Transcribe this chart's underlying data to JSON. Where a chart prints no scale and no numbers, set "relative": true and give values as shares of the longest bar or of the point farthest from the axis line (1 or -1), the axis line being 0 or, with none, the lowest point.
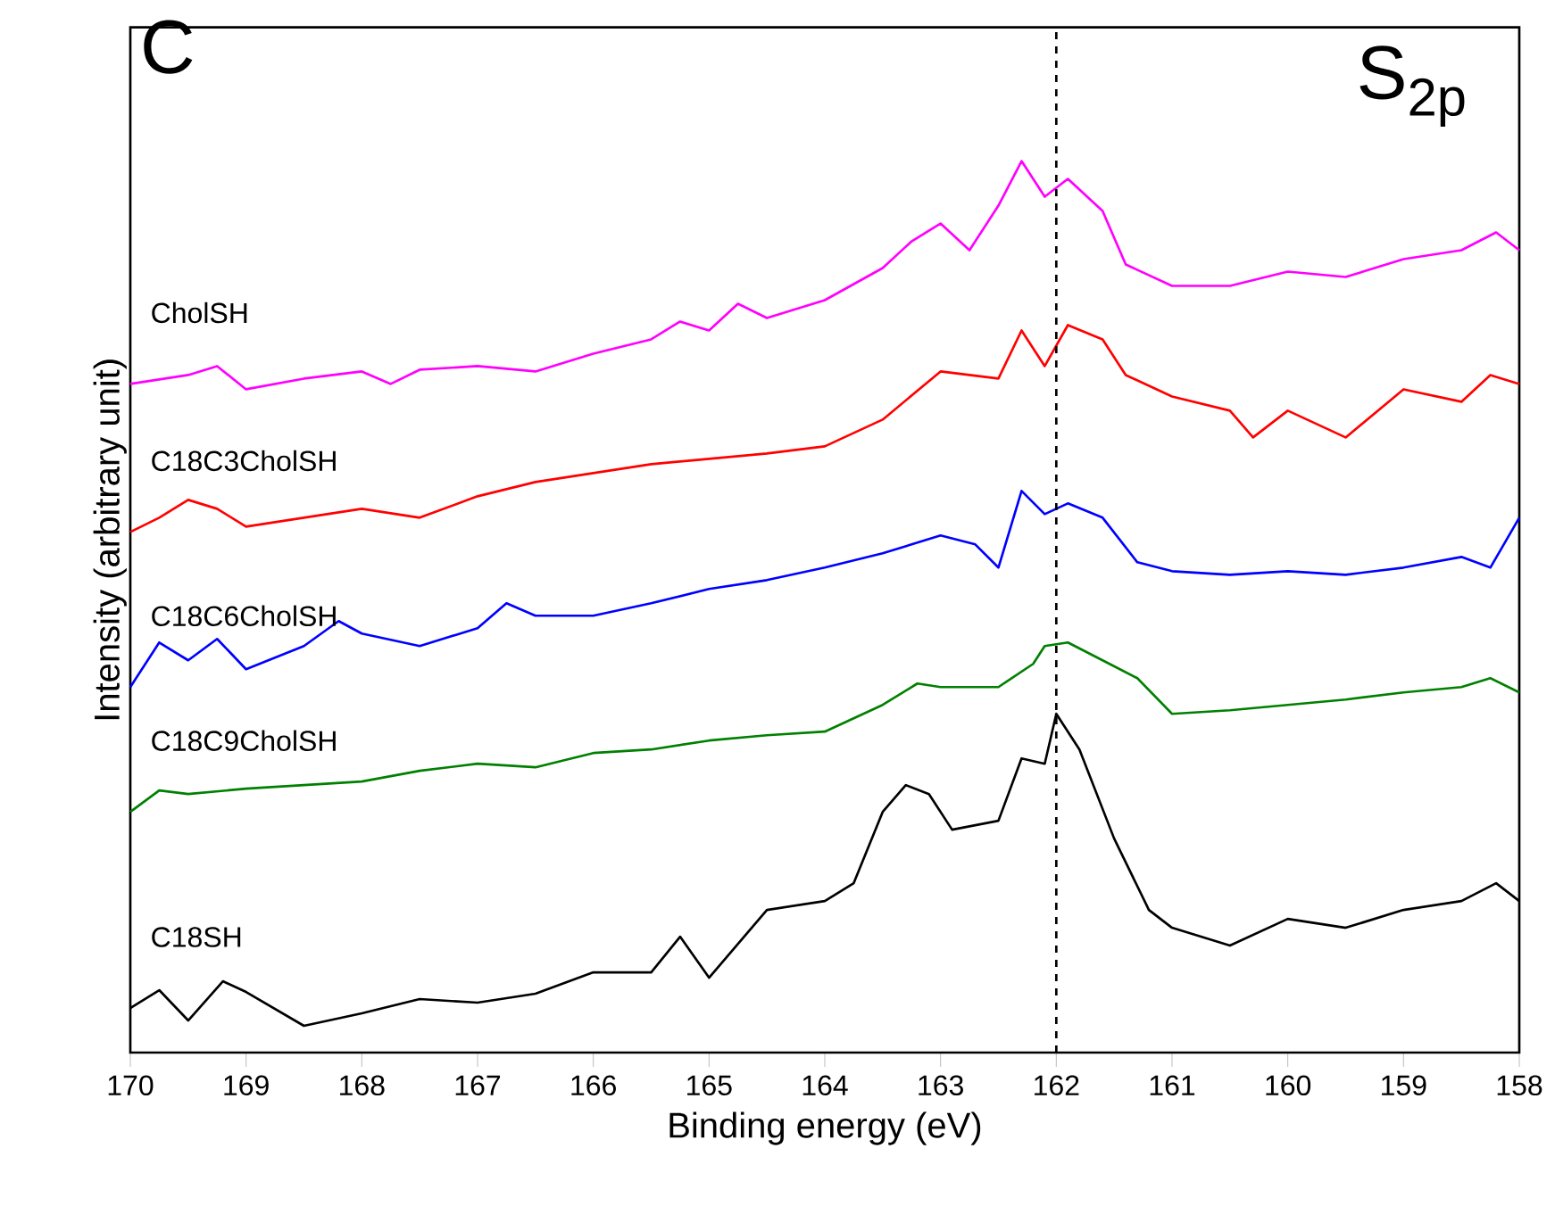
{
  "chart_data": {
    "type": "line",
    "xlabel": "Binding energy (eV)",
    "ylabel": "Intensity (arbitrary unit)",
    "annotations": [
      "C",
      "S$_{2p}$"
    ],
    "relative": true,
    "tick_labels": "x",
    "grid": false,
    "marker": "none",
    "line_style": "solid",
    "xlim": [
      170,
      158
    ],
    "xticks": [
      170,
      169,
      168,
      167,
      166,
      165,
      164,
      163,
      162,
      161,
      160,
      159,
      158
    ],
    "ref_lines": [
      {
        "axis": "x",
        "value": 162,
        "color": "#000000",
        "line_style": "dashed"
      }
    ],
    "series": [
      {
        "name": "CholSH",
        "color": "#ff00ff",
        "x": [
          170,
          169.5,
          169.25,
          169,
          168.5,
          168,
          167.75,
          167.5,
          167,
          166.5,
          166,
          165.5,
          165.25,
          165,
          164.75,
          164.5,
          164,
          163.5,
          163.25,
          163,
          162.75,
          162.5,
          162.3,
          162.1,
          161.9,
          161.6,
          161.4,
          161,
          160.5,
          160,
          159.5,
          159,
          158.5,
          158.2,
          158
        ],
        "values": [
          0.75,
          0.76,
          0.77,
          0.744,
          0.756,
          0.764,
          0.75,
          0.766,
          0.77,
          0.764,
          0.784,
          0.8,
          0.82,
          0.81,
          0.84,
          0.824,
          0.844,
          0.88,
          0.91,
          0.93,
          0.9,
          0.95,
          1.0,
          0.96,
          0.98,
          0.944,
          0.884,
          0.86,
          0.86,
          0.876,
          0.87,
          0.89,
          0.9,
          0.92,
          0.9
        ]
      },
      {
        "name": "C18C3CholSH",
        "color": "#ff0000",
        "x": [
          170,
          169.75,
          169.5,
          169.25,
          169,
          168.5,
          168,
          167.5,
          167,
          166.5,
          166,
          165.5,
          165,
          164.5,
          164,
          163.5,
          163,
          162.5,
          162.3,
          162.1,
          161.9,
          161.6,
          161.4,
          161,
          160.5,
          160.3,
          160,
          159.5,
          159,
          158.5,
          158.25,
          158
        ],
        "values": [
          0.584,
          0.6,
          0.62,
          0.61,
          0.59,
          0.6,
          0.61,
          0.6,
          0.624,
          0.64,
          0.65,
          0.66,
          0.666,
          0.672,
          0.68,
          0.71,
          0.764,
          0.756,
          0.81,
          0.77,
          0.816,
          0.8,
          0.76,
          0.736,
          0.72,
          0.69,
          0.72,
          0.69,
          0.744,
          0.73,
          0.76,
          0.75
        ]
      },
      {
        "name": "C18C6CholSH",
        "color": "#0000ff",
        "x": [
          170,
          169.75,
          169.5,
          169.25,
          169,
          168.5,
          168.2,
          168,
          167.5,
          167,
          166.75,
          166.5,
          166,
          165.5,
          165,
          164.5,
          164,
          163.5,
          163,
          162.7,
          162.5,
          162.3,
          162.1,
          161.9,
          161.6,
          161.3,
          161,
          160.5,
          160,
          159.5,
          159,
          158.5,
          158.25,
          158
        ],
        "values": [
          0.41,
          0.46,
          0.44,
          0.464,
          0.43,
          0.456,
          0.484,
          0.47,
          0.456,
          0.476,
          0.504,
          0.49,
          0.49,
          0.504,
          0.52,
          0.53,
          0.544,
          0.56,
          0.58,
          0.57,
          0.544,
          0.63,
          0.604,
          0.616,
          0.6,
          0.55,
          0.54,
          0.536,
          0.54,
          0.536,
          0.544,
          0.556,
          0.544,
          0.6
        ]
      },
      {
        "name": "C18C9CholSH",
        "color": "#008000",
        "x": [
          170,
          169.75,
          169.5,
          169,
          168.5,
          168,
          167.5,
          167,
          166.5,
          166,
          165.5,
          165,
          164.5,
          164,
          163.5,
          163.2,
          163,
          162.5,
          162.2,
          162.1,
          161.9,
          161.6,
          161.3,
          161,
          160.5,
          160,
          159.5,
          159,
          158.5,
          158.25,
          158
        ],
        "values": [
          0.27,
          0.294,
          0.29,
          0.296,
          0.3,
          0.304,
          0.316,
          0.324,
          0.32,
          0.336,
          0.34,
          0.35,
          0.356,
          0.36,
          0.39,
          0.414,
          0.41,
          0.41,
          0.436,
          0.456,
          0.46,
          0.44,
          0.42,
          0.38,
          0.384,
          0.39,
          0.396,
          0.404,
          0.41,
          0.42,
          0.404
        ]
      },
      {
        "name": "C18SH",
        "color": "#000000",
        "x": [
          170,
          169.75,
          169.5,
          169.2,
          169,
          168.5,
          168,
          167.5,
          167,
          166.5,
          166,
          165.5,
          165.25,
          165,
          164.5,
          164,
          163.75,
          163.5,
          163.3,
          163.1,
          162.9,
          162.5,
          162.3,
          162.1,
          162,
          161.8,
          161.5,
          161.2,
          161,
          160.5,
          160,
          159.5,
          159,
          158.5,
          158.2,
          158
        ],
        "values": [
          0.05,
          0.07,
          0.036,
          0.08,
          0.068,
          0.03,
          0.044,
          0.06,
          0.056,
          0.066,
          0.09,
          0.09,
          0.13,
          0.084,
          0.16,
          0.17,
          0.19,
          0.27,
          0.3,
          0.29,
          0.25,
          0.26,
          0.33,
          0.324,
          0.38,
          0.34,
          0.24,
          0.16,
          0.14,
          0.12,
          0.15,
          0.14,
          0.16,
          0.17,
          0.19,
          0.17
        ]
      }
    ]
  }
}
